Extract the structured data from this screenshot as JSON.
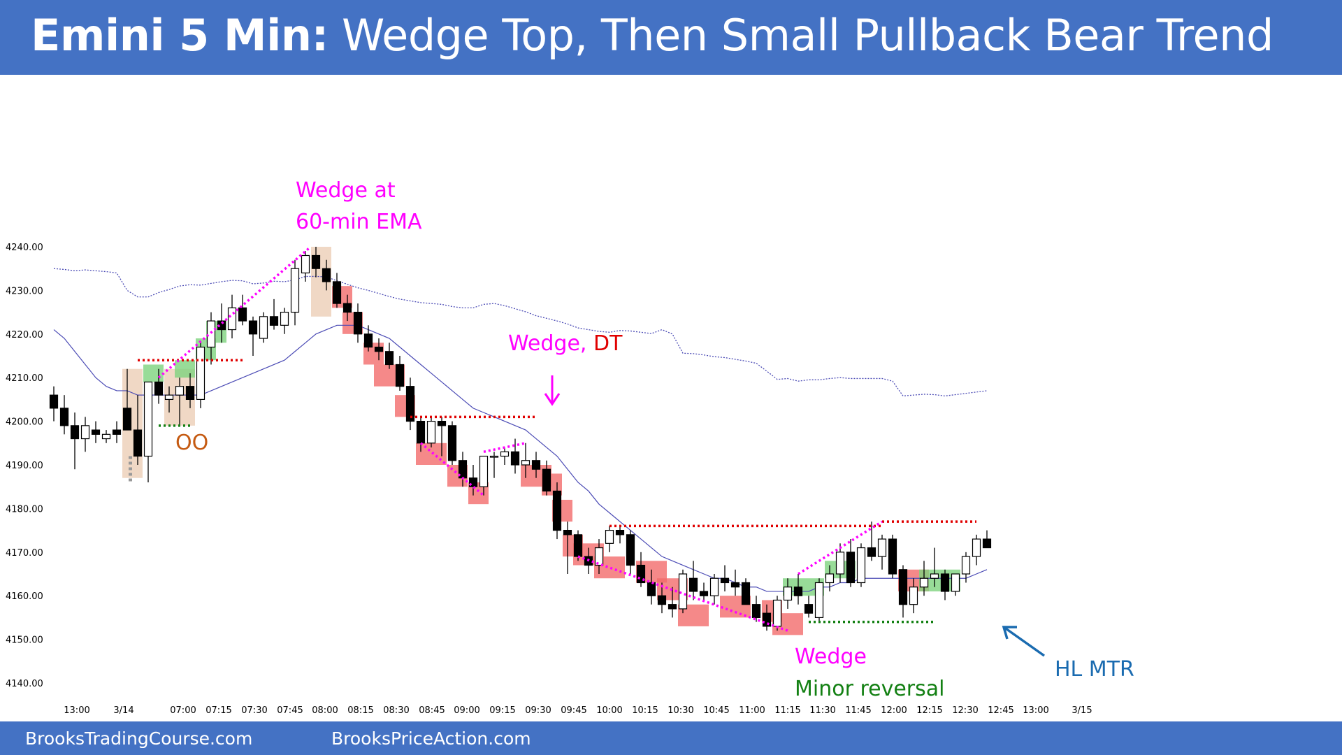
{
  "header": {
    "title_bold": "Emini 5 Min:",
    "title_rest": "Wedge Top, Then Small Pullback Bear Trend"
  },
  "footer": {
    "left": "BrooksTradingCourse.com",
    "right": "BrooksPriceAction.com"
  },
  "colors": {
    "header_bg": "#4472c4",
    "bull_highlight": "#7ed37e",
    "bear_highlight": "#f26b6b",
    "tan_highlight": "#e8c3a6",
    "ema": "#4b4bb5",
    "magenta": "#ff00ff",
    "red_dotted": "#e00000",
    "green_dotted": "#138013",
    "blue_annotation": "#1a6bb0",
    "orange_annotation": "#c55a11"
  },
  "chart_data": {
    "type": "candlestick",
    "title": "",
    "ylim": [
      4140,
      4240
    ],
    "y_ticks": [
      "4240.00",
      "4230.00",
      "4220.00",
      "4210.00",
      "4200.00",
      "4190.00",
      "4180.00",
      "4170.00",
      "4160.00",
      "4150.00",
      "4140.00"
    ],
    "x_ticks": [
      "13:00",
      "3/14",
      "07:00",
      "07:15",
      "07:30",
      "07:45",
      "08:00",
      "08:15",
      "08:30",
      "08:45",
      "09:00",
      "09:15",
      "09:30",
      "09:45",
      "10:00",
      "10:15",
      "10:30",
      "10:45",
      "11:00",
      "11:15",
      "11:30",
      "11:45",
      "12:00",
      "12:15",
      "12:30",
      "12:45",
      "13:00",
      "3/15"
    ],
    "candles": [
      [
        4206,
        4208,
        4200,
        4203
      ],
      [
        4203,
        4206,
        4197,
        4199
      ],
      [
        4199,
        4202,
        4189,
        4196
      ],
      [
        4196,
        4201,
        4193,
        4199
      ],
      [
        4198,
        4200,
        4195,
        4197
      ],
      [
        4196,
        4198,
        4195,
        4197
      ],
      [
        4198,
        4200,
        4195,
        4197
      ],
      [
        4203,
        4212,
        4198,
        4198
      ],
      [
        4198,
        4206,
        4190,
        4192
      ],
      [
        4192,
        4209,
        4186,
        4209
      ],
      [
        4209,
        4212,
        4204,
        4206
      ],
      [
        4205,
        4208,
        4202,
        4206
      ],
      [
        4206,
        4210,
        4199,
        4208
      ],
      [
        4208,
        4211,
        4203,
        4205
      ],
      [
        4205,
        4218,
        4203,
        4217
      ],
      [
        4217,
        4225,
        4213,
        4223
      ],
      [
        4223,
        4227,
        4218,
        4221
      ],
      [
        4221,
        4229,
        4219,
        4226
      ],
      [
        4226,
        4229,
        4222,
        4223
      ],
      [
        4223,
        4224,
        4215,
        4220
      ],
      [
        4219,
        4225,
        4218,
        4224
      ],
      [
        4224,
        4228,
        4221,
        4222
      ],
      [
        4222,
        4226,
        4220,
        4225
      ],
      [
        4225,
        4237,
        4222,
        4235
      ],
      [
        4234,
        4239,
        4232,
        4238
      ],
      [
        4238,
        4240,
        4233,
        4235
      ],
      [
        4235,
        4237,
        4230,
        4232
      ],
      [
        4232,
        4234,
        4226,
        4227
      ],
      [
        4227,
        4229,
        4223,
        4225
      ],
      [
        4225,
        4227,
        4218,
        4220
      ],
      [
        4220,
        4222,
        4216,
        4217
      ],
      [
        4217,
        4219,
        4214,
        4216
      ],
      [
        4216,
        4218,
        4212,
        4213
      ],
      [
        4213,
        4215,
        4207,
        4208
      ],
      [
        4208,
        4210,
        4198,
        4200
      ],
      [
        4200,
        4201,
        4193,
        4195
      ],
      [
        4195,
        4201,
        4194,
        4200
      ],
      [
        4200,
        4201,
        4192,
        4199
      ],
      [
        4199,
        4200,
        4190,
        4191
      ],
      [
        4191,
        4193,
        4185,
        4187
      ],
      [
        4187,
        4190,
        4183,
        4185
      ],
      [
        4185,
        4192,
        4183,
        4192
      ],
      [
        4192,
        4193,
        4187,
        4192
      ],
      [
        4192,
        4194,
        4190,
        4193
      ],
      [
        4193,
        4196,
        4188,
        4190
      ],
      [
        4190,
        4195,
        4187,
        4191
      ],
      [
        4191,
        4193,
        4187,
        4189
      ],
      [
        4189,
        4191,
        4183,
        4184
      ],
      [
        4184,
        4186,
        4173,
        4175
      ],
      [
        4175,
        4177,
        4165,
        4174
      ],
      [
        4174,
        4175,
        4168,
        4169
      ],
      [
        4169,
        4171,
        4165,
        4167
      ],
      [
        4167,
        4173,
        4165,
        4171
      ],
      [
        4172,
        4176,
        4170,
        4175
      ],
      [
        4175,
        4176,
        4172,
        4174
      ],
      [
        4174,
        4175,
        4165,
        4167
      ],
      [
        4167,
        4170,
        4162,
        4163
      ],
      [
        4163,
        4166,
        4158,
        4160
      ],
      [
        4160,
        4163,
        4156,
        4158
      ],
      [
        4158,
        4162,
        4155,
        4157
      ],
      [
        4157,
        4166,
        4156,
        4165
      ],
      [
        4164,
        4168,
        4159,
        4161
      ],
      [
        4161,
        4163,
        4159,
        4160
      ],
      [
        4160,
        4165,
        4158,
        4164
      ],
      [
        4164,
        4167,
        4161,
        4163
      ],
      [
        4163,
        4166,
        4160,
        4162
      ],
      [
        4163,
        4164,
        4158,
        4158
      ],
      [
        4158,
        4160,
        4154,
        4155
      ],
      [
        4156,
        4158,
        4152,
        4153
      ],
      [
        4153,
        4160,
        4152,
        4159
      ],
      [
        4159,
        4164,
        4157,
        4162
      ],
      [
        4162,
        4165,
        4158,
        4160
      ],
      [
        4158,
        4160,
        4155,
        4156
      ],
      [
        4155,
        4164,
        4154,
        4163
      ],
      [
        4163,
        4167,
        4161,
        4165
      ],
      [
        4165,
        4172,
        4163,
        4170
      ],
      [
        4170,
        4173,
        4162,
        4163
      ],
      [
        4163,
        4172,
        4162,
        4171
      ],
      [
        4171,
        4177,
        4168,
        4169
      ],
      [
        4169,
        4174,
        4166,
        4173
      ],
      [
        4173,
        4174,
        4164,
        4165
      ],
      [
        4166,
        4167,
        4155,
        4158
      ],
      [
        4158,
        4164,
        4156,
        4162
      ],
      [
        4162,
        4168,
        4160,
        4164
      ],
      [
        4164,
        4171,
        4162,
        4165
      ],
      [
        4165,
        4166,
        4159,
        4161
      ],
      [
        4161,
        4165,
        4160,
        4165
      ],
      [
        4165,
        4170,
        4163,
        4169
      ],
      [
        4169,
        4174,
        4167,
        4173
      ],
      [
        4173,
        4175,
        4171,
        4171
      ]
    ],
    "ema_20": [
      4221,
      4219,
      4216,
      4213,
      4210,
      4208,
      4207,
      4207,
      4206,
      4206,
      4206,
      4206,
      4206,
      4206,
      4206,
      4207,
      4208,
      4209,
      4210,
      4211,
      4212,
      4213,
      4214,
      4216,
      4218,
      4220,
      4221,
      4222,
      4222,
      4222,
      4221,
      4220,
      4219,
      4217,
      4215,
      4213,
      4211,
      4209,
      4207,
      4205,
      4203,
      4202,
      4201,
      4200,
      4199,
      4198,
      4196,
      4194,
      4192,
      4189,
      4186,
      4184,
      4181,
      4179,
      4177,
      4175,
      4173,
      4171,
      4169,
      4168,
      4167,
      4166,
      4165,
      4164,
      4164,
      4163,
      4162,
      4162,
      4161,
      4161,
      4161,
      4161,
      4161,
      4162,
      4162,
      4163,
      4163,
      4164,
      4164,
      4164,
      4164,
      4164,
      4164,
      4164,
      4164,
      4164,
      4164,
      4164,
      4165,
      4166
    ],
    "ema_60min": [
      4235,
      4234.8,
      4234.5,
      4234.7,
      4234.5,
      4234.3,
      4234,
      4230,
      4228.5,
      4228.5,
      4229.5,
      4230.2,
      4231,
      4231.3,
      4231.2,
      4231.6,
      4232,
      4232.3,
      4232.2,
      4231.5,
      4231.7,
      4232.1,
      4232,
      4232.4,
      4233.2,
      4233.2,
      4233.1,
      4232.2,
      4231.4,
      4230.6,
      4230,
      4229.3,
      4228.6,
      4228,
      4227.6,
      4227.2,
      4227,
      4226.8,
      4226.3,
      4226,
      4226,
      4226.8,
      4227,
      4226.5,
      4225.8,
      4225.1,
      4224.2,
      4223.6,
      4223,
      4222.3,
      4221.4,
      4221,
      4220.6,
      4220.4,
      4220.8,
      4220.7,
      4220.4,
      4220.1,
      4221,
      4220,
      4215.6,
      4215.5,
      4215.2,
      4214.8,
      4214.6,
      4214.2,
      4213.8,
      4213.3,
      4211.5,
      4209.6,
      4209.8,
      4209.2,
      4209.5,
      4209.5,
      4209.8,
      4210.0,
      4209.8,
      4209.8,
      4209.8,
      4209.8,
      4209.2,
      4205.8,
      4206,
      4206.2,
      4206.1,
      4205.8,
      4206.1,
      4206.4,
      4206.7,
      4207
    ]
  },
  "annotations": {
    "wedge_at_line1": "Wedge at",
    "wedge_at_line2": "60-min EMA",
    "wedge_dt_wedge": "Wedge,",
    "wedge_dt_dt": "DT",
    "oo": "OO",
    "wedge_bottom": "Wedge",
    "minor_reversal": "Minor reversal",
    "hl_mtr": "HL MTR"
  }
}
